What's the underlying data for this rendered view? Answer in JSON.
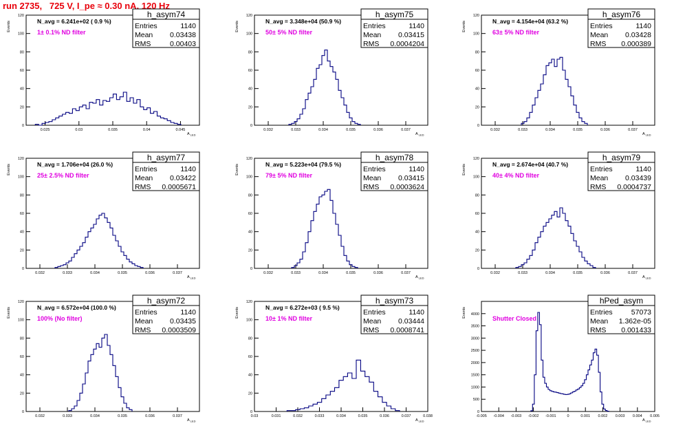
{
  "run_title": "run 2735,   725 V, I_pe ≈ 0.30 nA, 120 Hz",
  "ylabel": "Events",
  "xlabel_main": "A",
  "xlabel_sub": "LED",
  "colors": {
    "title": "#e8000b",
    "annotation": "#e000e0",
    "histogram": "#000080",
    "frame": "#000000"
  },
  "chart_data": [
    {
      "type": "bar",
      "name": "h_asym74",
      "navg": "N_avg = 6.241e+02 ( 0.9 %)",
      "annotation": "1± 0.1% ND filter",
      "stats": {
        "entries": "1140",
        "mean": "0.03438",
        "rms": "0.00403"
      },
      "xlim": [
        0.0222,
        0.0478
      ],
      "ylim": [
        0,
        120
      ],
      "xticks": [
        0.025,
        0.03,
        0.035,
        0.04,
        0.045
      ],
      "xticklabels": [
        "0.025",
        "0.03",
        "0.035",
        "0.04",
        "0.045"
      ],
      "yticks": [
        0,
        20,
        40,
        60,
        80,
        100,
        120
      ],
      "yticklabels": [
        "0",
        "20",
        "40",
        "60",
        "80",
        "100",
        "120"
      ],
      "x": [
        0.0238,
        0.0243,
        0.0248,
        0.0253,
        0.0258,
        0.0263,
        0.0268,
        0.0273,
        0.0278,
        0.0283,
        0.0288,
        0.0293,
        0.0298,
        0.0303,
        0.0308,
        0.0313,
        0.0318,
        0.0323,
        0.0328,
        0.0333,
        0.0338,
        0.0343,
        0.0348,
        0.0353,
        0.0358,
        0.0363,
        0.0368,
        0.0373,
        0.0378,
        0.0383,
        0.0388,
        0.0393,
        0.0398,
        0.0403,
        0.0408,
        0.0413,
        0.0418,
        0.0423,
        0.0428,
        0.0433,
        0.0438,
        0.0443,
        0.0448
      ],
      "values": [
        1,
        0,
        2,
        3,
        4,
        6,
        8,
        10,
        12,
        14,
        13,
        18,
        16,
        20,
        22,
        18,
        25,
        24,
        28,
        22,
        27,
        26,
        30,
        34,
        28,
        31,
        36,
        26,
        30,
        24,
        28,
        20,
        17,
        19,
        13,
        15,
        10,
        8,
        7,
        5,
        3,
        2,
        1
      ]
    },
    {
      "type": "bar",
      "name": "h_asym75",
      "navg": "N_avg = 3.348e+04 (50.9 %)",
      "annotation": "50± 5% ND filter",
      "stats": {
        "entries": "1140",
        "mean": "0.03415",
        "rms": "0.0004204"
      },
      "xlim": [
        0.0315,
        0.0378
      ],
      "ylim": [
        0,
        120
      ],
      "xticks": [
        0.032,
        0.033,
        0.034,
        0.035,
        0.036,
        0.037
      ],
      "xticklabels": [
        "0.032",
        "0.033",
        "0.034",
        "0.035",
        "0.036",
        "0.037"
      ],
      "yticks": [
        0,
        20,
        40,
        60,
        80,
        100,
        120
      ],
      "yticklabels": [
        "0",
        "20",
        "40",
        "60",
        "80",
        "100",
        "120"
      ],
      "x": [
        0.0328,
        0.0329,
        0.033,
        0.0331,
        0.0332,
        0.0333,
        0.0334,
        0.0335,
        0.0336,
        0.0337,
        0.0338,
        0.0339,
        0.034,
        0.0341,
        0.0342,
        0.0343,
        0.0344,
        0.0345,
        0.0346,
        0.0347,
        0.0348,
        0.0349,
        0.035,
        0.0351,
        0.0352,
        0.0353
      ],
      "values": [
        1,
        2,
        4,
        7,
        12,
        18,
        28,
        35,
        42,
        50,
        62,
        66,
        76,
        82,
        70,
        64,
        58,
        50,
        38,
        30,
        22,
        14,
        8,
        4,
        2,
        1
      ]
    },
    {
      "type": "bar",
      "name": "h_asym76",
      "navg": "N_avg = 4.154e+04 (63.2 %)",
      "annotation": "63± 5% ND filter",
      "stats": {
        "entries": "1140",
        "mean": "0.03428",
        "rms": "0.000389"
      },
      "xlim": [
        0.0315,
        0.0378
      ],
      "ylim": [
        0,
        120
      ],
      "xticks": [
        0.032,
        0.033,
        0.034,
        0.035,
        0.036,
        0.037
      ],
      "xticklabels": [
        "0.032",
        "0.033",
        "0.034",
        "0.035",
        "0.036",
        "0.037"
      ],
      "yticks": [
        0,
        20,
        40,
        60,
        80,
        100,
        120
      ],
      "yticklabels": [
        "0",
        "20",
        "40",
        "60",
        "80",
        "100",
        "120"
      ],
      "x": [
        0.033,
        0.0331,
        0.0332,
        0.0333,
        0.0334,
        0.0335,
        0.0336,
        0.0337,
        0.0338,
        0.0339,
        0.034,
        0.0341,
        0.0342,
        0.0343,
        0.0344,
        0.0345,
        0.0346,
        0.0347,
        0.0348,
        0.0349,
        0.035,
        0.0351,
        0.0352,
        0.0353
      ],
      "values": [
        2,
        4,
        8,
        14,
        22,
        30,
        38,
        45,
        55,
        65,
        68,
        72,
        64,
        72,
        74,
        60,
        50,
        42,
        32,
        22,
        14,
        8,
        4,
        2
      ]
    },
    {
      "type": "bar",
      "name": "h_asym77",
      "navg": "N_avg = 1.706e+04 (26.0 %)",
      "annotation": "25± 2.5% ND filter",
      "stats": {
        "entries": "1140",
        "mean": "0.03422",
        "rms": "0.0005671"
      },
      "xlim": [
        0.0315,
        0.0378
      ],
      "ylim": [
        0,
        120
      ],
      "xticks": [
        0.032,
        0.033,
        0.034,
        0.035,
        0.036,
        0.037
      ],
      "xticklabels": [
        "0.032",
        "0.033",
        "0.034",
        "0.035",
        "0.036",
        "0.037"
      ],
      "yticks": [
        0,
        20,
        40,
        60,
        80,
        100,
        120
      ],
      "yticklabels": [
        "0",
        "20",
        "40",
        "60",
        "80",
        "100",
        "120"
      ],
      "x": [
        0.0326,
        0.0327,
        0.0328,
        0.0329,
        0.033,
        0.0331,
        0.0332,
        0.0333,
        0.0334,
        0.0335,
        0.0336,
        0.0337,
        0.0338,
        0.0339,
        0.034,
        0.0341,
        0.0342,
        0.0343,
        0.0344,
        0.0345,
        0.0346,
        0.0347,
        0.0348,
        0.0349,
        0.035,
        0.0351,
        0.0352,
        0.0353,
        0.0354,
        0.0355,
        0.0356,
        0.0357
      ],
      "values": [
        1,
        2,
        3,
        4,
        6,
        8,
        12,
        16,
        20,
        24,
        28,
        34,
        40,
        44,
        48,
        54,
        58,
        60,
        55,
        50,
        44,
        36,
        30,
        24,
        18,
        14,
        10,
        7,
        5,
        3,
        2,
        1
      ]
    },
    {
      "type": "bar",
      "name": "h_asym78",
      "navg": "N_avg = 5.223e+04 (79.5 %)",
      "annotation": "79± 5% ND filter",
      "stats": {
        "entries": "1140",
        "mean": "0.03415",
        "rms": "0.0003624"
      },
      "xlim": [
        0.0315,
        0.0378
      ],
      "ylim": [
        0,
        120
      ],
      "xticks": [
        0.032,
        0.033,
        0.034,
        0.035,
        0.036,
        0.037
      ],
      "xticklabels": [
        "0.032",
        "0.033",
        "0.034",
        "0.035",
        "0.036",
        "0.037"
      ],
      "yticks": [
        0,
        20,
        40,
        60,
        80,
        100,
        120
      ],
      "yticklabels": [
        "0",
        "20",
        "40",
        "60",
        "80",
        "100",
        "120"
      ],
      "x": [
        0.0329,
        0.033,
        0.0331,
        0.0332,
        0.0333,
        0.0334,
        0.0335,
        0.0336,
        0.0337,
        0.0338,
        0.0339,
        0.034,
        0.0341,
        0.0342,
        0.0343,
        0.0344,
        0.0345,
        0.0346,
        0.0347,
        0.0348,
        0.0349,
        0.035,
        0.0351,
        0.0352
      ],
      "values": [
        1,
        3,
        6,
        10,
        18,
        28,
        40,
        52,
        62,
        70,
        78,
        80,
        84,
        86,
        74,
        60,
        48,
        36,
        24,
        14,
        8,
        4,
        2,
        1
      ]
    },
    {
      "type": "bar",
      "name": "h_asym79",
      "navg": "N_avg = 2.674e+04 (40.7 %)",
      "annotation": "40± 4% ND filter",
      "stats": {
        "entries": "1140",
        "mean": "0.03439",
        "rms": "0.0004737"
      },
      "xlim": [
        0.0315,
        0.0378
      ],
      "ylim": [
        0,
        120
      ],
      "xticks": [
        0.032,
        0.033,
        0.034,
        0.035,
        0.036,
        0.037
      ],
      "xticklabels": [
        "0.032",
        "0.033",
        "0.034",
        "0.035",
        "0.036",
        "0.037"
      ],
      "yticks": [
        0,
        20,
        40,
        60,
        80,
        100,
        120
      ],
      "yticklabels": [
        "0",
        "20",
        "40",
        "60",
        "80",
        "100",
        "120"
      ],
      "x": [
        0.0328,
        0.0329,
        0.033,
        0.0331,
        0.0332,
        0.0333,
        0.0334,
        0.0335,
        0.0336,
        0.0337,
        0.0338,
        0.0339,
        0.034,
        0.0341,
        0.0342,
        0.0343,
        0.0344,
        0.0345,
        0.0346,
        0.0347,
        0.0348,
        0.0349,
        0.035,
        0.0351,
        0.0352,
        0.0353,
        0.0354,
        0.0355,
        0.0356
      ],
      "values": [
        1,
        2,
        4,
        6,
        10,
        14,
        20,
        28,
        34,
        40,
        46,
        50,
        54,
        58,
        62,
        56,
        66,
        60,
        52,
        46,
        38,
        30,
        24,
        18,
        12,
        8,
        5,
        3,
        1
      ]
    },
    {
      "type": "bar",
      "name": "h_asym72",
      "navg": "N_avg = 6.572e+04 (100.0 %)",
      "annotation": "100% (No filter)",
      "stats": {
        "entries": "1140",
        "mean": "0.03435",
        "rms": "0.0003509"
      },
      "xlim": [
        0.0315,
        0.0378
      ],
      "ylim": [
        0,
        120
      ],
      "xticks": [
        0.032,
        0.033,
        0.034,
        0.035,
        0.036,
        0.037
      ],
      "xticklabels": [
        "0.032",
        "0.033",
        "0.034",
        "0.035",
        "0.036",
        "0.037"
      ],
      "yticks": [
        0,
        20,
        40,
        60,
        80,
        100,
        120
      ],
      "yticklabels": [
        "0",
        "20",
        "40",
        "60",
        "80",
        "100",
        "120"
      ],
      "x": [
        0.0331,
        0.0332,
        0.0333,
        0.0334,
        0.0335,
        0.0336,
        0.0337,
        0.0338,
        0.0339,
        0.034,
        0.0341,
        0.0342,
        0.0343,
        0.0344,
        0.0345,
        0.0346,
        0.0347,
        0.0348,
        0.0349,
        0.035,
        0.0351,
        0.0352,
        0.0353
      ],
      "values": [
        1,
        3,
        6,
        12,
        20,
        30,
        42,
        55,
        62,
        68,
        74,
        70,
        80,
        84,
        72,
        62,
        50,
        38,
        26,
        16,
        9,
        4,
        2
      ]
    },
    {
      "type": "bar",
      "name": "h_asym73",
      "navg": "N_avg = 6.272e+03 ( 9.5 %)",
      "annotation": "10± 1% ND filter",
      "stats": {
        "entries": "1140",
        "mean": "0.03444",
        "rms": "0.0008741"
      },
      "xlim": [
        0.03,
        0.038
      ],
      "ylim": [
        0,
        120
      ],
      "xticks": [
        0.03,
        0.031,
        0.032,
        0.033,
        0.034,
        0.035,
        0.036,
        0.037,
        0.038
      ],
      "xticklabels": [
        "0.03",
        "0.031",
        "0.032",
        "0.033",
        "0.034",
        "0.035",
        "0.036",
        "0.037",
        "0.038"
      ],
      "yticks": [
        0,
        20,
        40,
        60,
        80,
        100,
        120
      ],
      "yticklabels": [
        "0",
        "20",
        "40",
        "60",
        "80",
        "100",
        "120"
      ],
      "x": [
        0.0316,
        0.0318,
        0.032,
        0.0322,
        0.0324,
        0.0326,
        0.0328,
        0.033,
        0.0332,
        0.0334,
        0.0336,
        0.0338,
        0.034,
        0.0342,
        0.0344,
        0.0346,
        0.0348,
        0.035,
        0.0352,
        0.0354,
        0.0356,
        0.0358,
        0.036,
        0.0362,
        0.0364,
        0.0366
      ],
      "values": [
        1,
        1,
        2,
        3,
        4,
        6,
        8,
        10,
        14,
        18,
        22,
        26,
        34,
        38,
        42,
        36,
        56,
        44,
        38,
        32,
        22,
        16,
        10,
        6,
        3,
        1
      ]
    },
    {
      "type": "bar",
      "name": "hPed_asym",
      "navg": "",
      "annotation": "Shutter Closed",
      "stats": {
        "entries": "57073",
        "mean": "1.362e-05",
        "rms": "0.001433"
      },
      "xlim": [
        -0.005,
        0.005
      ],
      "ylim": [
        0,
        4500
      ],
      "xticks": [
        -0.005,
        -0.004,
        -0.003,
        -0.002,
        -0.001,
        0,
        0.001,
        0.002,
        0.003,
        0.004,
        0.005
      ],
      "xticklabels": [
        "-0.005",
        "-0.004",
        "-0.003",
        "-0.002",
        "-0.001",
        "0",
        "0.001",
        "0.002",
        "0.003",
        "0.004",
        "0.005"
      ],
      "yticks": [
        0,
        500,
        1000,
        1500,
        2000,
        2500,
        3000,
        3500,
        4000
      ],
      "yticklabels": [
        "0",
        "500",
        "1000",
        "1500",
        "2000",
        "2500",
        "3000",
        "3500",
        "4000"
      ],
      "x": [
        -0.0021,
        -0.002,
        -0.0019,
        -0.0018,
        -0.0017,
        -0.0016,
        -0.0015,
        -0.0014,
        -0.0013,
        -0.0012,
        -0.0011,
        -0.001,
        -0.0009,
        -0.0008,
        -0.0007,
        -0.0006,
        -0.0005,
        -0.0004,
        -0.0003,
        -0.0002,
        -0.0001,
        0.0,
        0.0001,
        0.0002,
        0.0003,
        0.0004,
        0.0005,
        0.0006,
        0.0007,
        0.0008,
        0.0009,
        0.001,
        0.0011,
        0.0012,
        0.0013,
        0.0014,
        0.0015,
        0.0016,
        0.0017,
        0.0018,
        0.0019,
        0.002,
        0.0021,
        0.0022,
        0.0023
      ],
      "values": [
        30,
        300,
        1500,
        3300,
        4050,
        3550,
        2100,
        1400,
        1150,
        1000,
        900,
        850,
        820,
        800,
        790,
        770,
        750,
        730,
        720,
        700,
        690,
        700,
        720,
        760,
        800,
        830,
        880,
        920,
        980,
        1050,
        1150,
        1300,
        1500,
        1700,
        1900,
        2100,
        2400,
        2550,
        2300,
        1600,
        800,
        300,
        100,
        40,
        10
      ]
    }
  ]
}
